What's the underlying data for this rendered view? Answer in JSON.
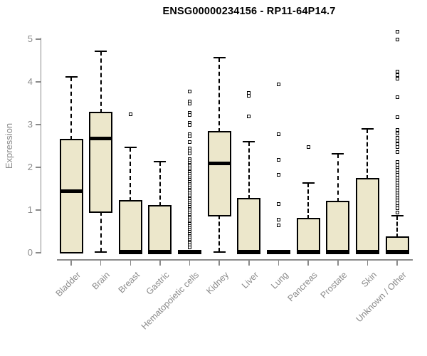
{
  "chart_data": {
    "type": "boxplot",
    "title": "ENSG00000234156 - RP11-64P14.7",
    "ylabel": "Expression",
    "xlabel": "",
    "ylim": [
      0,
      5.2
    ],
    "yticks": [
      0,
      1,
      2,
      3,
      4,
      5
    ],
    "grid": false,
    "legend": "none",
    "categories": [
      "Bladder",
      "Brain",
      "Breast",
      "Gastric",
      "Hematopoietic cells",
      "Kidney",
      "Liver",
      "Lung",
      "Pancreas",
      "Prostate",
      "Skin",
      "Unknown / Other"
    ],
    "series": [
      {
        "name": "Bladder",
        "whisker_low": 0.02,
        "q1": 0.02,
        "median": 1.44,
        "q3": 2.63,
        "whisker_high": 4.12,
        "outliers": []
      },
      {
        "name": "Brain",
        "whisker_low": 0.02,
        "q1": 0.97,
        "median": 2.67,
        "q3": 3.27,
        "whisker_high": 4.72,
        "outliers": []
      },
      {
        "name": "Breast",
        "whisker_low": 0,
        "q1": 0,
        "median": 0.02,
        "q3": 1.2,
        "whisker_high": 2.46,
        "outliers": [
          3.25
        ]
      },
      {
        "name": "Gastric",
        "whisker_low": 0,
        "q1": 0,
        "median": 0.02,
        "q3": 1.08,
        "whisker_high": 2.13,
        "outliers": []
      },
      {
        "name": "Hematopoietic cells",
        "whisker_low": 0,
        "q1": 0,
        "median": 0.02,
        "q3": 0.04,
        "whisker_high": 0.04,
        "outliers": [
          3.78,
          3.55,
          3.5,
          3.28,
          3.22,
          3.05,
          3.0,
          2.78,
          2.72,
          2.6,
          2.45,
          2.4,
          2.33,
          2.2,
          2.155,
          2.11,
          2.065,
          2.02,
          1.975,
          1.93,
          1.885,
          1.84,
          1.795,
          1.75,
          1.705,
          1.66,
          1.615,
          1.57,
          1.525,
          1.48,
          1.435,
          1.39,
          1.345,
          1.3,
          1.255,
          1.21,
          1.165,
          1.12,
          1.075,
          1.03,
          0.985,
          0.94,
          0.895,
          0.85,
          0.805,
          0.76,
          0.715,
          0.67,
          0.625,
          0.58,
          0.535,
          0.49,
          0.445,
          0.4,
          0.355,
          0.31,
          0.265,
          0.22,
          0.175,
          0.13
        ]
      },
      {
        "name": "Kidney",
        "whisker_low": 0.01,
        "q1": 0.88,
        "median": 2.1,
        "q3": 2.82,
        "whisker_high": 4.57,
        "outliers": []
      },
      {
        "name": "Liver",
        "whisker_low": 0,
        "q1": 0,
        "median": 0.02,
        "q3": 1.25,
        "whisker_high": 2.6,
        "outliers": [
          3.75,
          3.67,
          3.2
        ]
      },
      {
        "name": "Lung",
        "whisker_low": 0,
        "q1": 0,
        "median": 0.02,
        "q3": 0.03,
        "whisker_high": 0.03,
        "outliers": [
          3.95,
          2.78,
          2.17,
          1.83,
          1.14,
          0.78,
          0.64
        ]
      },
      {
        "name": "Pancreas",
        "whisker_low": 0,
        "q1": 0,
        "median": 0.02,
        "q3": 0.78,
        "whisker_high": 1.64,
        "outliers": [
          2.48
        ]
      },
      {
        "name": "Prostate",
        "whisker_low": 0,
        "q1": 0,
        "median": 0.02,
        "q3": 1.19,
        "whisker_high": 2.32,
        "outliers": []
      },
      {
        "name": "Skin",
        "whisker_low": 0,
        "q1": 0,
        "median": 0.02,
        "q3": 1.71,
        "whisker_high": 2.9,
        "outliers": []
      },
      {
        "name": "Unknown / Other",
        "whisker_low": 0,
        "q1": 0,
        "median": 0.02,
        "q3": 0.35,
        "whisker_high": 0.86,
        "outliers": [
          5.18,
          5.0,
          4.25,
          4.16,
          4.08,
          3.65,
          3.17,
          2.88,
          2.8,
          2.7,
          2.62,
          2.55,
          2.48,
          2.36,
          2.12,
          2.06,
          2.0,
          1.94,
          1.88,
          1.82,
          1.76,
          1.7,
          1.64,
          1.58,
          1.52,
          1.46,
          1.4,
          1.34,
          1.28,
          1.22,
          1.16,
          1.1,
          1.05,
          0.95
        ]
      }
    ],
    "colors": {
      "box_fill": "#ece7cb",
      "box_border": "#000000",
      "median": "#000000",
      "whisker": "#000000",
      "outlier_border": "#000000",
      "outlier_fill": "#ffffff",
      "axis": "#8a8a8a",
      "title": "#000000",
      "background": "#ffffff"
    }
  }
}
